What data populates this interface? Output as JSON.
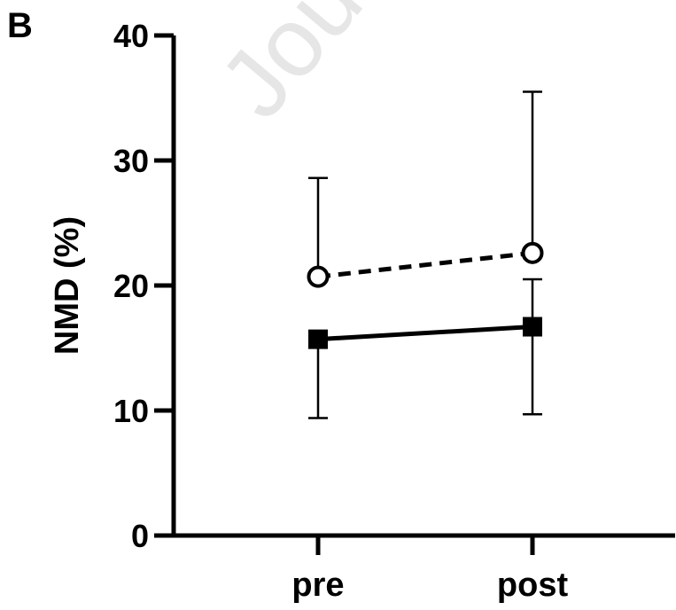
{
  "panel_label": "B",
  "watermark": "Jou",
  "chart_data": {
    "type": "line",
    "categories": [
      "pre",
      "post"
    ],
    "ylabel": "NMD (%)",
    "xlabel": "",
    "ylim": [
      0,
      40
    ],
    "yticks": [
      0,
      10,
      20,
      30,
      40
    ],
    "grid": false,
    "legend": "none",
    "series": [
      {
        "marker": "open-circle",
        "line_style": "dashed",
        "color": "#000000",
        "values": [
          20.7,
          22.6
        ],
        "error_upper": [
          28.6,
          35.5
        ],
        "error_lower": [
          20.7,
          22.6
        ]
      },
      {
        "marker": "filled-square",
        "line_style": "solid",
        "color": "#000000",
        "values": [
          15.7,
          16.7
        ],
        "error_upper": [
          15.7,
          20.5
        ],
        "error_lower": [
          9.4,
          9.7
        ]
      }
    ]
  }
}
